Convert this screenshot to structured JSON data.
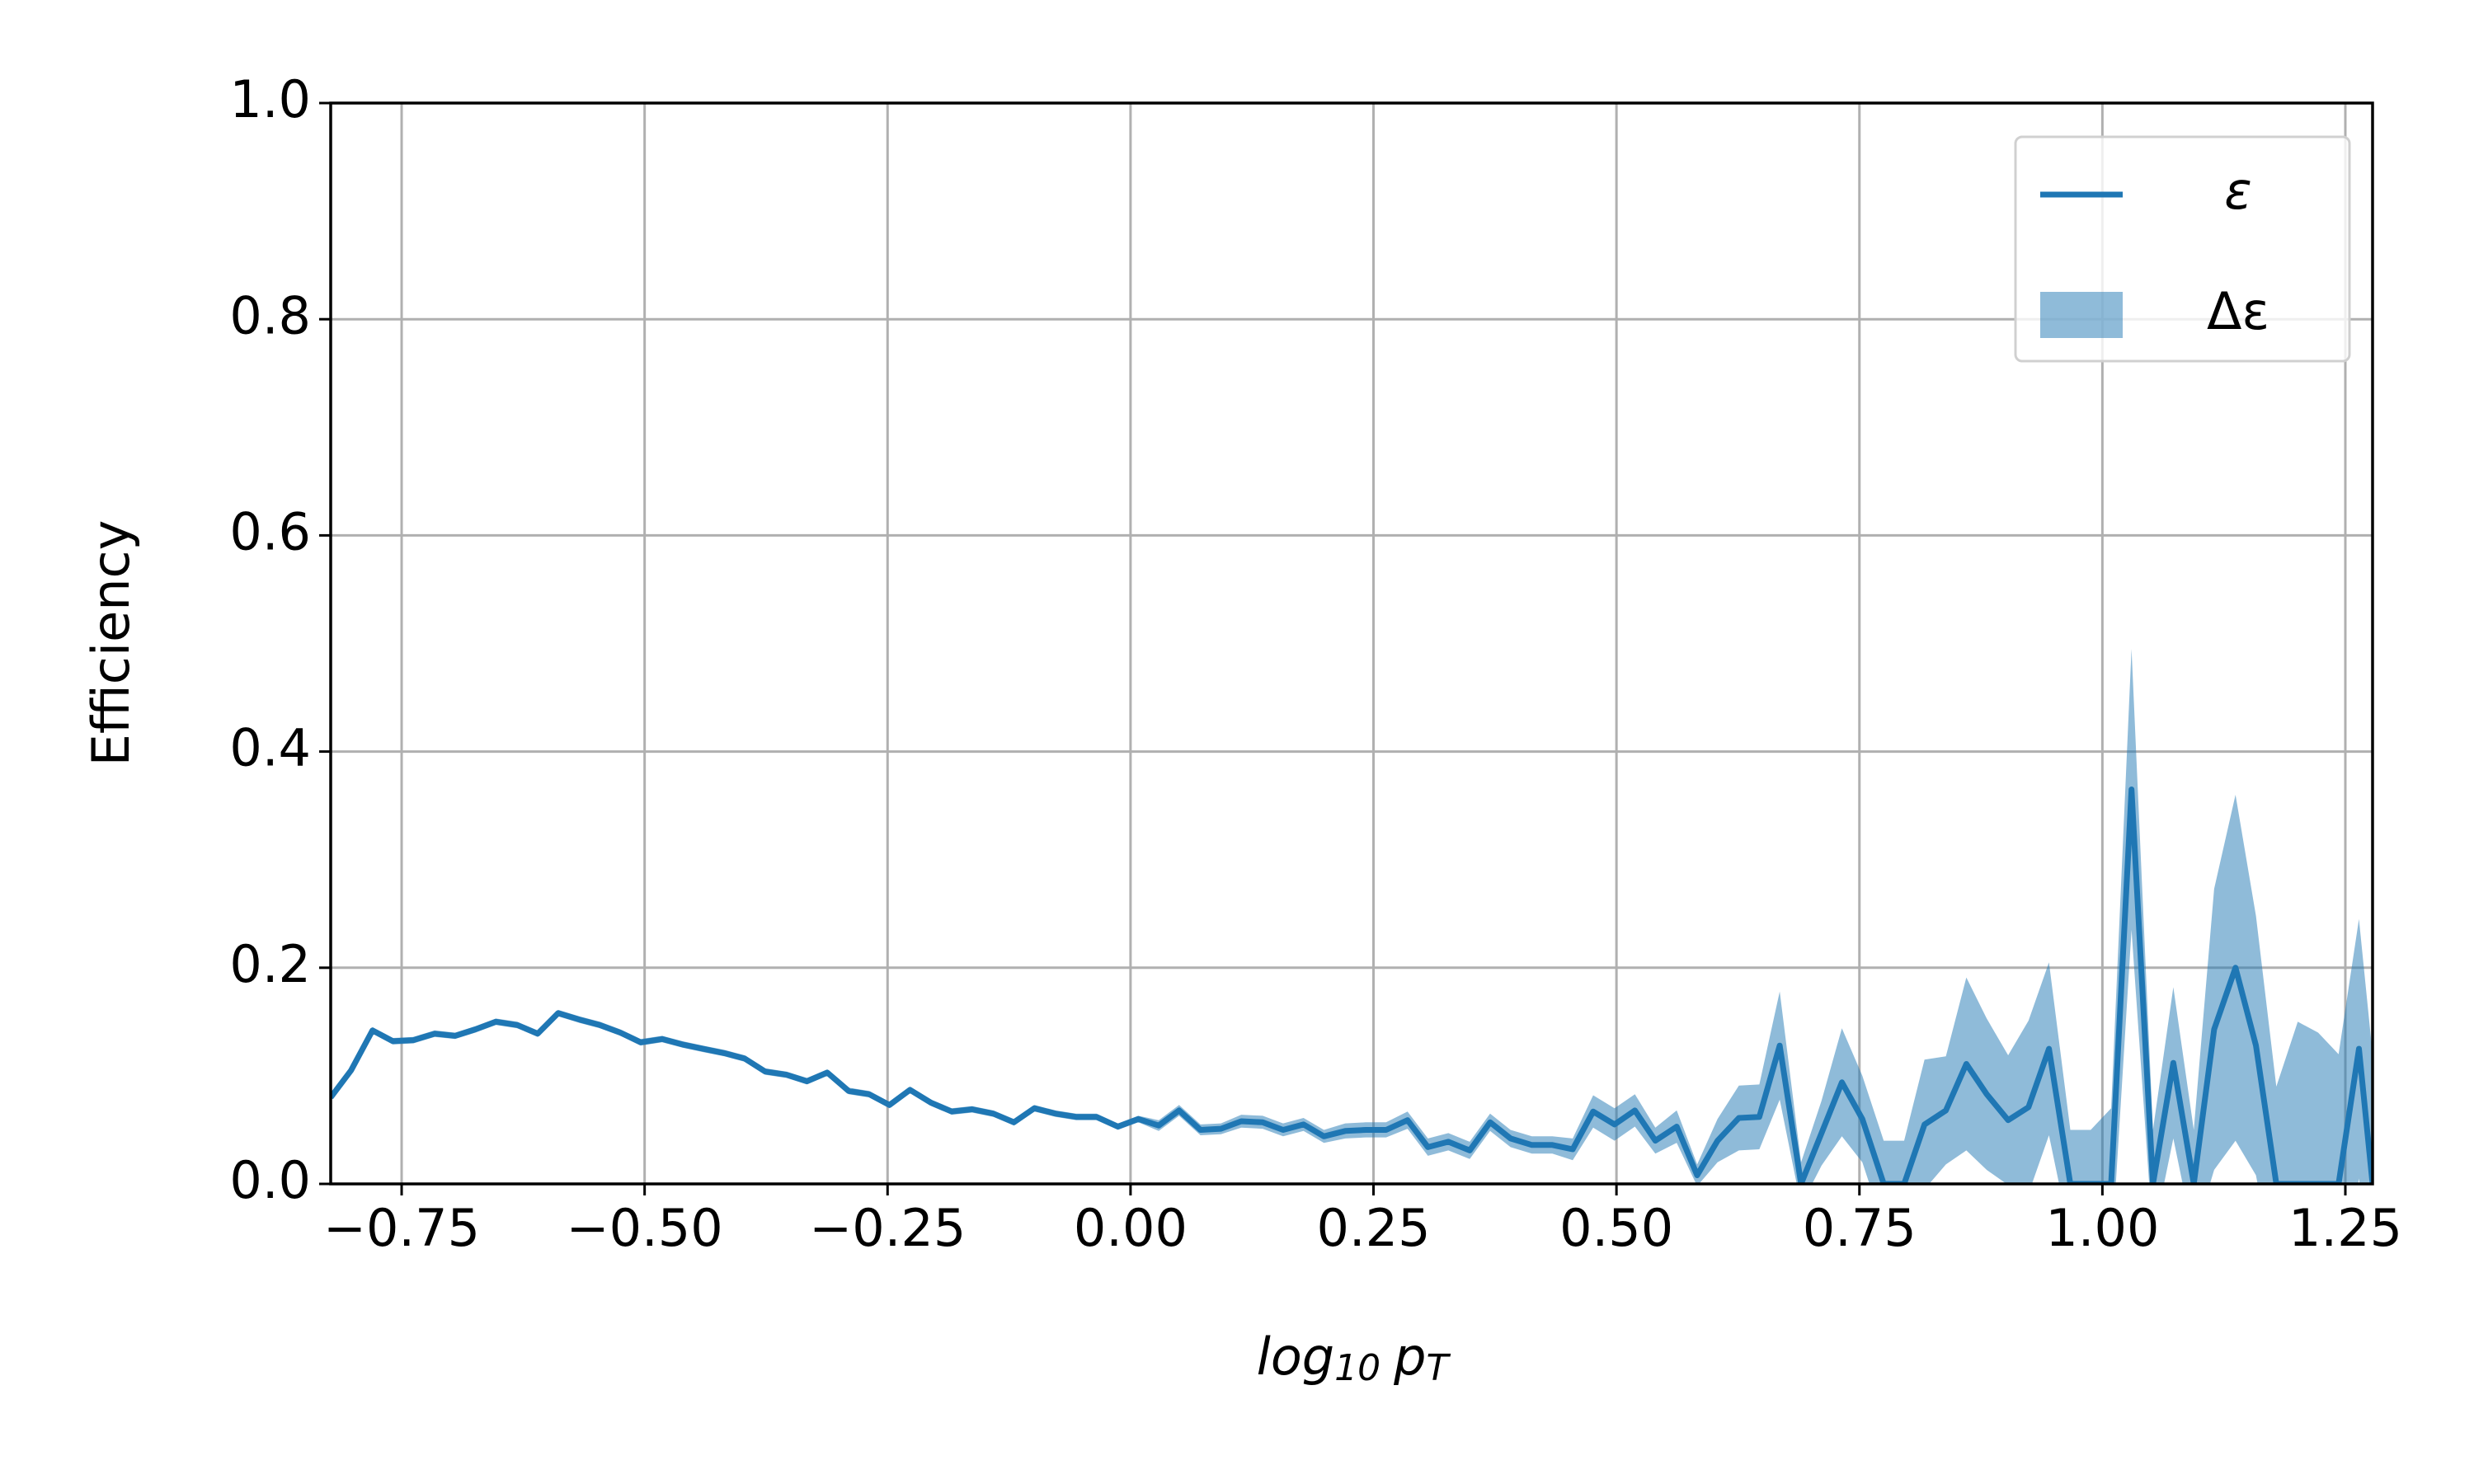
{
  "chart_data": {
    "type": "line",
    "xlabel": [
      "log",
      "10",
      "p",
      "T"
    ],
    "ylabel": "Efficiency",
    "x": [
      -0.823,
      -0.802,
      -0.78,
      -0.759,
      -0.738,
      -0.716,
      -0.695,
      -0.674,
      -0.653,
      -0.631,
      -0.61,
      -0.589,
      -0.567,
      -0.546,
      -0.525,
      -0.504,
      -0.482,
      -0.461,
      -0.44,
      -0.418,
      -0.397,
      -0.376,
      -0.354,
      -0.333,
      -0.312,
      -0.29,
      -0.269,
      -0.248,
      -0.227,
      -0.205,
      -0.184,
      -0.163,
      -0.141,
      -0.12,
      -0.099,
      -0.077,
      -0.056,
      -0.035,
      -0.013,
      0.008,
      0.029,
      0.05,
      0.072,
      0.093,
      0.114,
      0.136,
      0.157,
      0.178,
      0.199,
      0.221,
      0.242,
      0.263,
      0.285,
      0.306,
      0.327,
      0.349,
      0.37,
      0.391,
      0.413,
      0.434,
      0.455,
      0.476,
      0.498,
      0.519,
      0.54,
      0.562,
      0.583,
      0.604,
      0.626,
      0.647,
      0.668,
      0.69,
      0.711,
      0.732,
      0.753,
      0.775,
      0.796,
      0.817,
      0.839,
      0.86,
      0.881,
      0.903,
      0.924,
      0.945,
      0.967,
      0.988,
      1.009,
      1.03,
      1.052,
      1.073,
      1.094,
      1.115,
      1.137,
      1.158,
      1.179,
      1.201,
      1.222,
      1.243,
      1.264,
      1.278
    ],
    "series": [
      {
        "name": "ε",
        "band_name": "Δε",
        "color": "#1f77b4",
        "values": [
          0.08,
          0.105,
          0.142,
          0.132,
          0.133,
          0.139,
          0.137,
          0.143,
          0.15,
          0.147,
          0.139,
          0.158,
          0.152,
          0.147,
          0.14,
          0.131,
          0.134,
          0.129,
          0.125,
          0.121,
          0.116,
          0.104,
          0.101,
          0.095,
          0.103,
          0.086,
          0.083,
          0.073,
          0.087,
          0.075,
          0.067,
          0.069,
          0.065,
          0.057,
          0.07,
          0.065,
          0.062,
          0.062,
          0.053,
          0.06,
          0.054,
          0.068,
          0.05,
          0.051,
          0.058,
          0.057,
          0.05,
          0.055,
          0.044,
          0.049,
          0.05,
          0.05,
          0.059,
          0.034,
          0.039,
          0.031,
          0.057,
          0.042,
          0.036,
          0.036,
          0.032,
          0.067,
          0.055,
          0.068,
          0.04,
          0.053,
          0.008,
          0.04,
          0.061,
          0.062,
          0.128,
          0.0,
          0.047,
          0.094,
          0.06,
          0.0,
          0.0,
          0.055,
          0.068,
          0.111,
          0.083,
          0.059,
          0.071,
          0.125,
          0.0,
          0.0,
          0.0,
          0.365,
          0.0,
          0.112,
          0.0,
          0.143,
          0.2,
          0.128,
          0.0,
          0.0,
          0.0,
          0.0,
          0.125,
          0.0
        ],
        "errors": [
          0.003,
          0.003,
          0.003,
          0.003,
          0.003,
          0.003,
          0.003,
          0.003,
          0.003,
          0.003,
          0.003,
          0.003,
          0.003,
          0.003,
          0.003,
          0.003,
          0.003,
          0.003,
          0.003,
          0.003,
          0.003,
          0.003,
          0.003,
          0.003,
          0.003,
          0.003,
          0.003,
          0.003,
          0.003,
          0.003,
          0.003,
          0.003,
          0.003,
          0.003,
          0.003,
          0.003,
          0.003,
          0.003,
          0.003,
          0.003,
          0.005,
          0.005,
          0.005,
          0.005,
          0.006,
          0.006,
          0.006,
          0.006,
          0.006,
          0.007,
          0.007,
          0.007,
          0.008,
          0.008,
          0.008,
          0.008,
          0.008,
          0.008,
          0.008,
          0.008,
          0.01,
          0.015,
          0.015,
          0.015,
          0.012,
          0.015,
          0.01,
          0.02,
          0.03,
          0.03,
          0.05,
          0.02,
          0.03,
          0.05,
          0.04,
          0.04,
          0.04,
          0.06,
          0.05,
          0.08,
          0.07,
          0.06,
          0.08,
          0.08,
          0.05,
          0.05,
          0.07,
          0.13,
          0.05,
          0.07,
          0.05,
          0.13,
          0.16,
          0.12,
          0.09,
          0.15,
          0.14,
          0.12,
          0.12,
          0.12
        ]
      }
    ],
    "xlim": [
      -0.823,
      1.278
    ],
    "ylim": [
      0,
      1
    ],
    "xticks": [
      {
        "value": -0.75,
        "label": "−0.75"
      },
      {
        "value": -0.5,
        "label": "−0.50"
      },
      {
        "value": -0.25,
        "label": "−0.25"
      },
      {
        "value": 0,
        "label": "0.00"
      },
      {
        "value": 0.25,
        "label": "0.25"
      },
      {
        "value": 0.5,
        "label": "0.50"
      },
      {
        "value": 0.75,
        "label": "0.75"
      },
      {
        "value": 1,
        "label": "1.00"
      },
      {
        "value": 1.25,
        "label": "1.25"
      }
    ],
    "yticks": [
      {
        "value": 0,
        "label": "0.0"
      },
      {
        "value": 0.2,
        "label": "0.2"
      },
      {
        "value": 0.4,
        "label": "0.4"
      },
      {
        "value": 0.6,
        "label": "0.6"
      },
      {
        "value": 0.8,
        "label": "0.8"
      },
      {
        "value": 1,
        "label": "1.0"
      }
    ],
    "grid": true,
    "legend": "upper right"
  }
}
